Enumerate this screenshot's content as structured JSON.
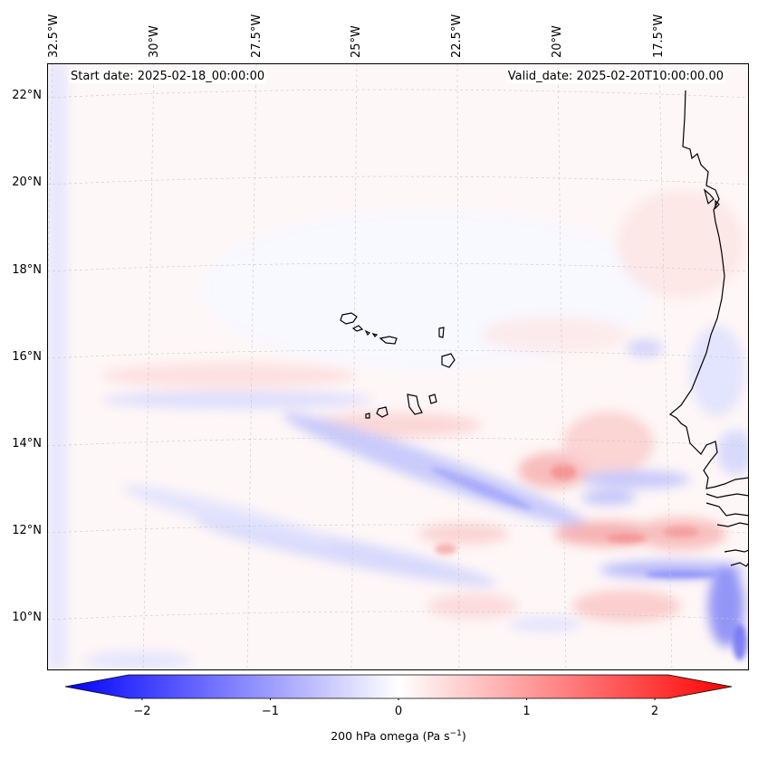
{
  "map": {
    "start_date": "Start date: 2025-02-18_00:00:00",
    "valid_date": "Valid_date: 2025-02-20T10:00:00.00",
    "lon_labels": [
      "32.5°W",
      "30°W",
      "27.5°W",
      "25°W",
      "22.5°W",
      "20°W",
      "17.5°W"
    ],
    "lat_labels": [
      "22°N",
      "20°N",
      "18°N",
      "16°N",
      "14°N",
      "12°N",
      "10°N"
    ],
    "colorbar": {
      "min": -2.6,
      "max": 2.6,
      "ticks": [
        "−2",
        "−1",
        "0",
        "1",
        "2"
      ],
      "tick_values": [
        -2,
        -1,
        0,
        1,
        2
      ],
      "label_main": "200 hPa omega (Pa s",
      "label_sup": "−1",
      "label_end": ")",
      "low_color": "#0000ff",
      "mid_color": "#ffffff",
      "high_color": "#ff0000"
    },
    "coastline_color": "#000000",
    "grid_color": "#bbbbbb"
  }
}
